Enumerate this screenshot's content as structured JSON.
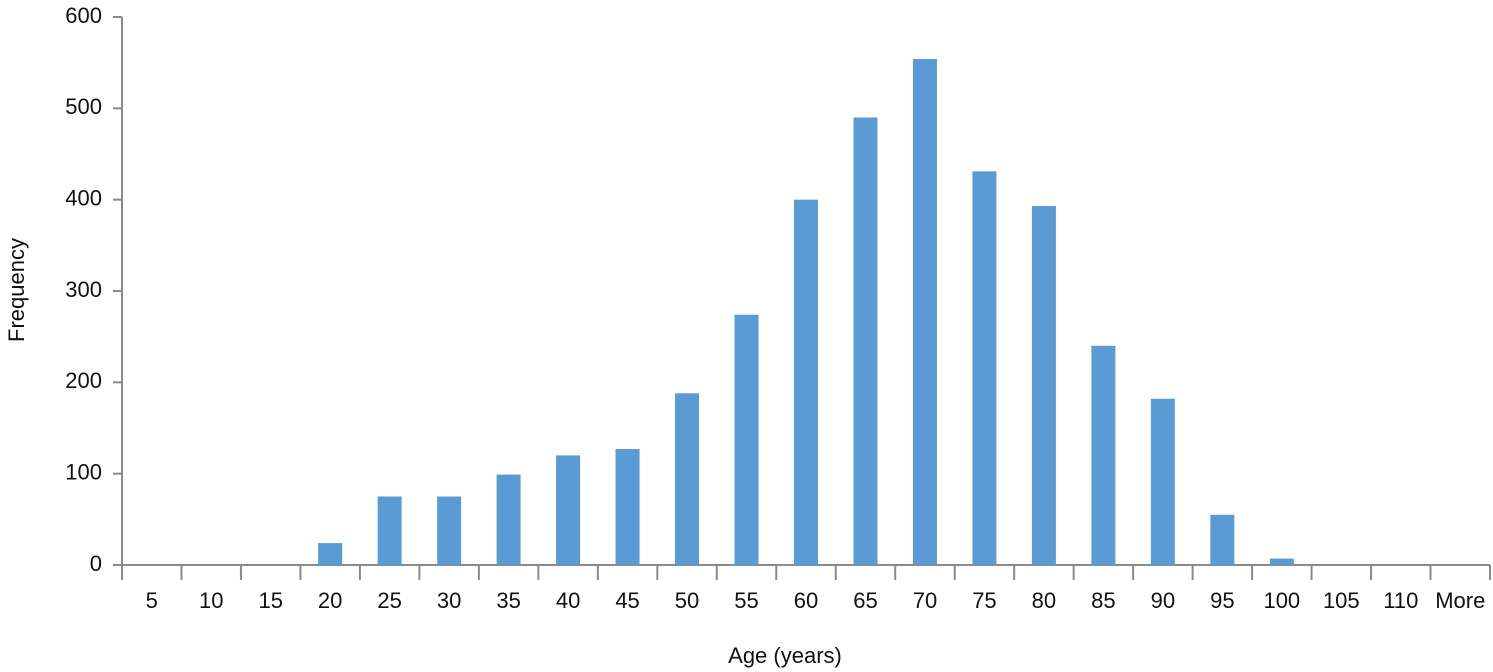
{
  "chart_data": {
    "type": "bar",
    "x_label": "Age (years)",
    "y_label": "Frequency",
    "categories": [
      "5",
      "10",
      "15",
      "20",
      "25",
      "30",
      "35",
      "40",
      "45",
      "50",
      "55",
      "60",
      "65",
      "70",
      "75",
      "80",
      "85",
      "90",
      "95",
      "100",
      "105",
      "110",
      "More"
    ],
    "values": [
      0,
      0,
      0,
      24,
      75,
      75,
      99,
      120,
      127,
      188,
      274,
      400,
      490,
      554,
      431,
      393,
      240,
      182,
      55,
      7,
      0,
      0,
      0
    ],
    "color": "#5b9bd5",
    "ylim": [
      0,
      600
    ],
    "yticks": [
      0,
      100,
      200,
      300,
      400,
      500,
      600
    ],
    "grid": false
  }
}
